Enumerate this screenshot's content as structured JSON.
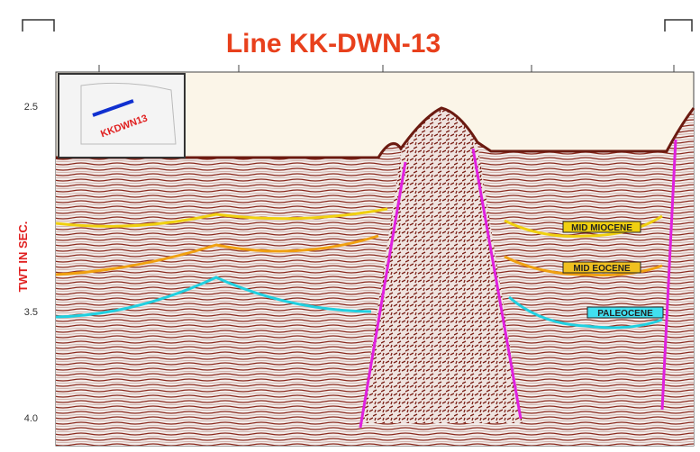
{
  "header": {
    "title": "Line KK-DWN-13"
  },
  "axis": {
    "label": "TWT IN SEC.",
    "ticks": [
      "2.5",
      "3.5",
      "4.0"
    ]
  },
  "inset": {
    "label": "KKDWN13"
  },
  "horizons": [
    "MID MIOCENE",
    "MID EOCENE",
    "PALEOCENE"
  ]
}
